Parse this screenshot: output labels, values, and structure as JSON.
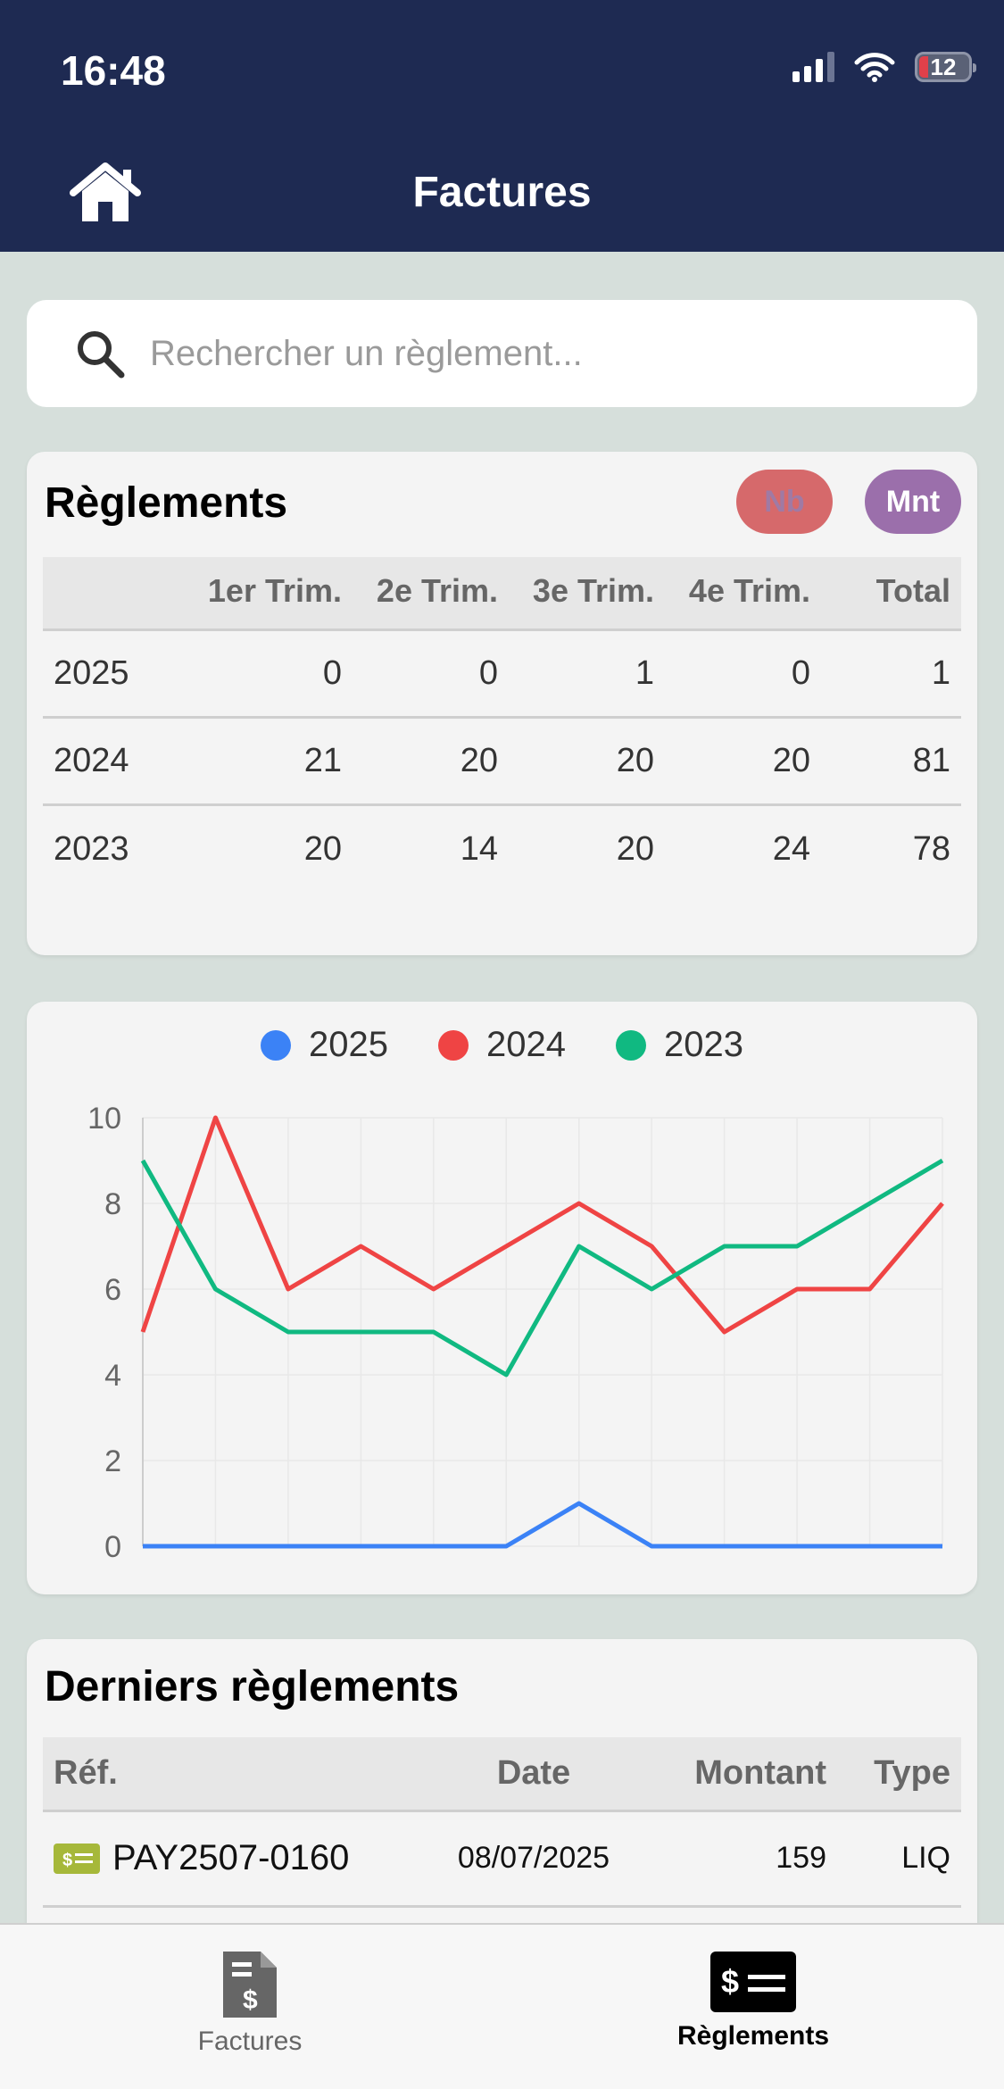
{
  "status_bar": {
    "time": "16:48",
    "battery": "12"
  },
  "header": {
    "title": "Factures",
    "home_icon": "home-icon"
  },
  "search": {
    "placeholder": "Rechercher un règlement...",
    "value": ""
  },
  "stats": {
    "title": "Règlements",
    "toggle_nb": "Nb",
    "toggle_mnt": "Mnt",
    "columns": [
      "",
      "1er Trim.",
      "2e Trim.",
      "3e Trim.",
      "4e Trim.",
      "Total"
    ],
    "rows": [
      [
        "2025",
        "0",
        "0",
        "1",
        "0",
        "1"
      ],
      [
        "2024",
        "21",
        "20",
        "20",
        "20",
        "81"
      ],
      [
        "2023",
        "20",
        "14",
        "20",
        "24",
        "78"
      ]
    ]
  },
  "colors": {
    "2025": "#3b82f6",
    "2024": "#ef4444",
    "2023": "#10b981",
    "nb_pill": "#d6696b",
    "mnt_pill": "#9b6fab"
  },
  "chart_data": {
    "type": "line",
    "x": [
      1,
      2,
      3,
      4,
      5,
      6,
      7,
      8,
      9,
      10,
      11,
      12
    ],
    "ylim": [
      0,
      10
    ],
    "yticks": [
      0,
      2,
      4,
      6,
      8,
      10
    ],
    "grid": true,
    "legend_position": "top-center",
    "series": [
      {
        "name": "2025",
        "values": [
          0,
          0,
          0,
          0,
          0,
          0,
          1,
          0,
          0,
          0,
          0,
          0
        ]
      },
      {
        "name": "2024",
        "values": [
          5,
          10,
          6,
          7,
          6,
          7,
          8,
          7,
          5,
          6,
          6,
          8
        ]
      },
      {
        "name": "2023",
        "values": [
          9,
          6,
          5,
          5,
          5,
          4,
          7,
          6,
          7,
          7,
          8,
          9
        ]
      }
    ]
  },
  "latest": {
    "title": "Derniers règlements",
    "columns": [
      "Réf.",
      "Date",
      "Montant",
      "Type"
    ],
    "rows": [
      {
        "ref": "PAY2507-0160",
        "date": "08/07/2025",
        "amount": "159",
        "type": "LIQ",
        "icon": "cash-icon"
      }
    ]
  },
  "tabbar": {
    "items": [
      {
        "label": "Factures",
        "icon": "invoice-icon",
        "active": false
      },
      {
        "label": "Règlements",
        "icon": "payment-icon",
        "active": true
      }
    ]
  }
}
